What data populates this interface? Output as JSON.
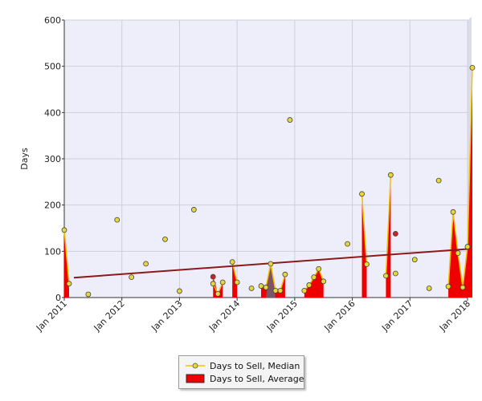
{
  "chart_data": {
    "type": "line",
    "title": "",
    "xlabel": "",
    "ylabel": "Days",
    "ylim": [
      0,
      600
    ],
    "yticks": [
      0,
      100,
      200,
      300,
      400,
      500,
      600
    ],
    "xticks": [
      "Jan 2011",
      "Jan 2012",
      "Jan 2013",
      "Jan 2014",
      "Jan 2015",
      "Jan 2016",
      "Jan 2017",
      "Jan 2018"
    ],
    "grid": true,
    "legend_position": "bottom-center",
    "colors": {
      "plot_bg": "#eeeefa",
      "grid": "#cfcfdc",
      "median_line": "#f2c200",
      "median_marker": "#e7d83a",
      "average_fill": "#ee0000",
      "trend": "#8b1a1a",
      "gray_peak": "#666677",
      "average_marker": "#cc2222"
    },
    "series": [
      {
        "name": "Days to Sell, Median",
        "kind": "line",
        "points": [
          [
            "2011-01",
            146
          ],
          [
            "2011-02",
            30
          ],
          [
            "2013-08",
            30
          ],
          [
            "2013-09",
            8
          ],
          [
            "2013-10",
            33
          ],
          [
            "2013-12",
            77
          ],
          [
            "2014-01",
            33
          ],
          [
            "2014-06",
            25
          ],
          [
            "2014-07",
            22
          ],
          [
            "2014-08",
            73
          ],
          [
            "2014-09",
            15
          ],
          [
            "2014-10",
            15
          ],
          [
            "2014-11",
            50
          ],
          [
            "2015-03",
            15
          ],
          [
            "2015-04",
            27
          ],
          [
            "2015-05",
            44
          ],
          [
            "2015-06",
            62
          ],
          [
            "2015-07",
            35
          ],
          [
            "2016-03",
            224
          ],
          [
            "2016-04",
            72
          ],
          [
            "2016-08",
            47
          ],
          [
            "2016-09",
            265
          ],
          [
            "2017-09",
            24
          ],
          [
            "2017-10",
            185
          ],
          [
            "2017-11",
            96
          ],
          [
            "2017-12",
            22
          ],
          [
            "2018-01",
            110
          ],
          [
            "2018-02",
            497
          ]
        ],
        "isolated_points": [
          [
            "2011-06",
            7
          ],
          [
            "2011-12",
            168
          ],
          [
            "2012-03",
            44
          ],
          [
            "2012-06",
            73
          ],
          [
            "2012-10",
            126
          ],
          [
            "2013-01",
            14
          ],
          [
            "2013-04",
            190
          ],
          [
            "2014-04",
            20
          ],
          [
            "2014-12",
            384
          ],
          [
            "2015-12",
            116
          ],
          [
            "2016-10",
            52
          ],
          [
            "2017-02",
            82
          ],
          [
            "2017-05",
            20
          ],
          [
            "2017-07",
            253
          ]
        ]
      },
      {
        "name": "Days to Sell, Average",
        "kind": "area",
        "points": [
          [
            "2011-01",
            146
          ],
          [
            "2011-02",
            20
          ],
          [
            "2013-08",
            45
          ],
          [
            "2013-09",
            8
          ],
          [
            "2013-10",
            33
          ],
          [
            "2013-12",
            77
          ],
          [
            "2014-01",
            33
          ],
          [
            "2014-06",
            25
          ],
          [
            "2014-07",
            22
          ],
          [
            "2014-08",
            73
          ],
          [
            "2014-09",
            15
          ],
          [
            "2014-10",
            15
          ],
          [
            "2014-11",
            50
          ],
          [
            "2015-03",
            15
          ],
          [
            "2015-04",
            27
          ],
          [
            "2015-05",
            44
          ],
          [
            "2015-06",
            62
          ],
          [
            "2015-07",
            35
          ],
          [
            "2016-03",
            224
          ],
          [
            "2016-04",
            72
          ],
          [
            "2016-08",
            47
          ],
          [
            "2016-09",
            265
          ],
          [
            "2017-09",
            24
          ],
          [
            "2017-10",
            185
          ],
          [
            "2017-11",
            96
          ],
          [
            "2017-12",
            22
          ],
          [
            "2018-01",
            110
          ],
          [
            "2018-02",
            497
          ]
        ],
        "isolated_points": [
          [
            "2013-08",
            45
          ],
          [
            "2016-10",
            138
          ]
        ]
      },
      {
        "kind": "trend",
        "points": [
          [
            "2011-03",
            43
          ],
          [
            "2018-01",
            105
          ]
        ]
      }
    ]
  },
  "legend": {
    "median_label": "Days to Sell, Median",
    "average_label": "Days to Sell, Average"
  }
}
